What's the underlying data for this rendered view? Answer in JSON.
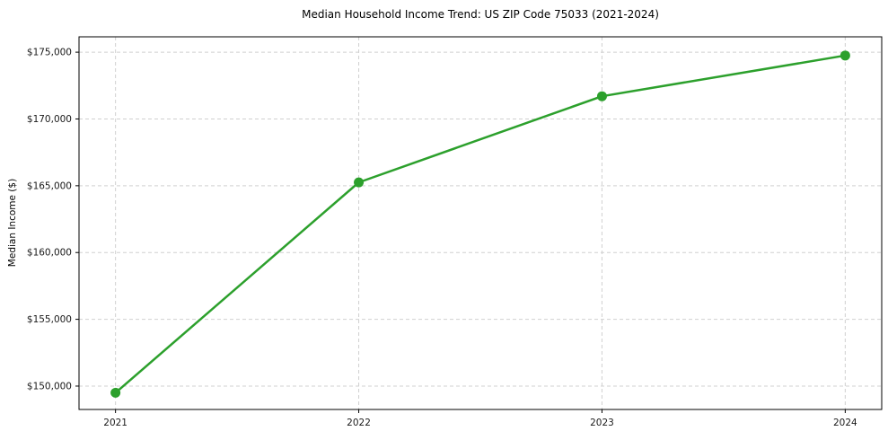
{
  "chart_data": {
    "type": "line",
    "title": "Median Household Income Trend: US ZIP Code 75033 (2021-2024)",
    "xlabel": "",
    "ylabel": "Median Income ($)",
    "categories": [
      "2021",
      "2022",
      "2023",
      "2024"
    ],
    "x": [
      2021,
      2022,
      2023,
      2024
    ],
    "series": [
      {
        "name": "Median Household Income",
        "values": [
          149500,
          165250,
          171700,
          174750
        ],
        "color": "#2ca02c",
        "marker": "circle"
      }
    ],
    "yticks": [
      150000,
      155000,
      160000,
      165000,
      170000,
      175000
    ],
    "ytick_labels": [
      "$150,000",
      "$155,000",
      "$160,000",
      "$165,000",
      "$170,000",
      "$175,000"
    ],
    "xlim": [
      2020.85,
      2024.15
    ],
    "ylim": [
      148250,
      176150
    ],
    "grid": true,
    "grid_style": "dashed",
    "grid_color": "#d0d0d0",
    "frame_color": "#000000",
    "legend": "none"
  }
}
